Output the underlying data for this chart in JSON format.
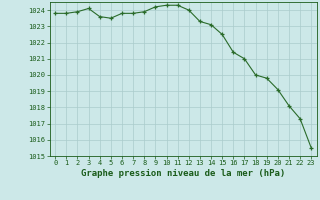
{
  "x": [
    0,
    1,
    2,
    3,
    4,
    5,
    6,
    7,
    8,
    9,
    10,
    11,
    12,
    13,
    14,
    15,
    16,
    17,
    18,
    19,
    20,
    21,
    22,
    23
  ],
  "y": [
    1023.8,
    1023.8,
    1023.9,
    1024.1,
    1023.6,
    1023.5,
    1023.8,
    1023.8,
    1023.9,
    1024.2,
    1024.3,
    1024.3,
    1024.0,
    1023.3,
    1023.1,
    1022.5,
    1021.4,
    1021.0,
    1020.0,
    1019.8,
    1019.1,
    1018.1,
    1017.3,
    1015.5
  ],
  "line_color": "#2a6b2a",
  "marker_color": "#2a6b2a",
  "bg_color": "#cce8e8",
  "grid_color": "#aacccc",
  "title": "Graphe pression niveau de la mer (hPa)",
  "ylim": [
    1015,
    1024.5
  ],
  "yticks": [
    1015,
    1016,
    1017,
    1018,
    1019,
    1020,
    1021,
    1022,
    1023,
    1024
  ],
  "xlim": [
    -0.5,
    23.5
  ],
  "xticks": [
    0,
    1,
    2,
    3,
    4,
    5,
    6,
    7,
    8,
    9,
    10,
    11,
    12,
    13,
    14,
    15,
    16,
    17,
    18,
    19,
    20,
    21,
    22,
    23
  ],
  "title_fontsize": 6.5,
  "tick_fontsize": 5.0,
  "title_color": "#1a5c1a",
  "tick_color": "#1a5c1a"
}
